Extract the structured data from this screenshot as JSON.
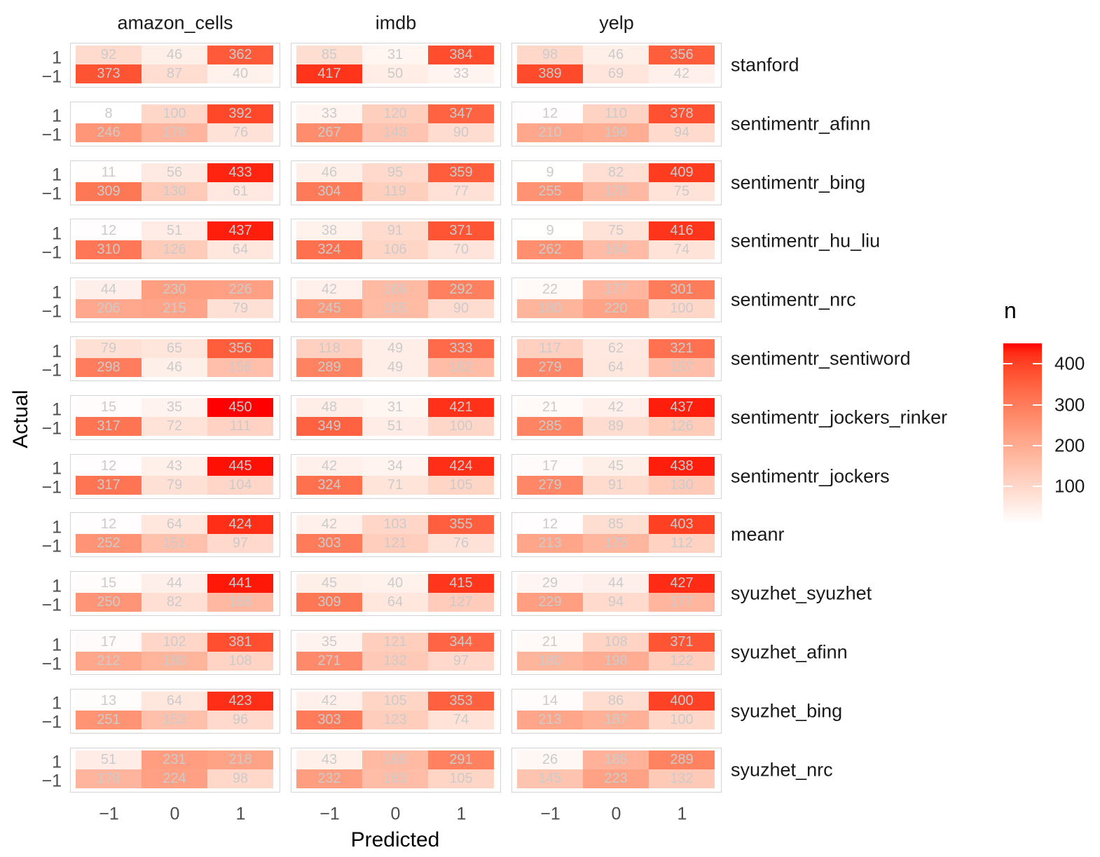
{
  "chart_data": {
    "type": "heatmap",
    "description": "Faceted confusion-matrix heatmaps (Actual vs Predicted sentiment) for 13 sentiment methods across 3 datasets; tile fill encodes count n.",
    "xlabel": "Predicted",
    "ylabel": "Actual",
    "x_categories": [
      "−1",
      "0",
      "1"
    ],
    "y_categories": [
      "1",
      "−1"
    ],
    "facet_columns": [
      "amazon_cells",
      "imdb",
      "yelp"
    ],
    "facet_rows": [
      "stanford",
      "sentimentr_afinn",
      "sentimentr_bing",
      "sentimentr_hu_liu",
      "sentimentr_nrc",
      "sentimentr_sentiword",
      "sentimentr_jockers_rinker",
      "sentimentr_jockers",
      "meanr",
      "syuzhet_syuzhet",
      "syuzhet_afinn",
      "syuzhet_bing",
      "syuzhet_nrc"
    ],
    "legend": {
      "title": "n",
      "ticks": [
        400,
        300,
        200,
        100
      ],
      "min": 8,
      "max": 450,
      "low_color": "#FFFFFF",
      "high_color": "#FF0000"
    },
    "rows": [
      {
        "method": "stanford",
        "matrices": [
          [
            [
              92,
              46,
              362
            ],
            [
              373,
              87,
              40
            ]
          ],
          [
            [
              85,
              31,
              384
            ],
            [
              417,
              50,
              33
            ]
          ],
          [
            [
              98,
              46,
              356
            ],
            [
              389,
              69,
              42
            ]
          ]
        ]
      },
      {
        "method": "sentimentr_afinn",
        "matrices": [
          [
            [
              8,
              100,
              392
            ],
            [
              246,
              178,
              76
            ]
          ],
          [
            [
              33,
              120,
              347
            ],
            [
              267,
              143,
              90
            ]
          ],
          [
            [
              12,
              110,
              378
            ],
            [
              210,
              196,
              94
            ]
          ]
        ]
      },
      {
        "method": "sentimentr_bing",
        "matrices": [
          [
            [
              11,
              56,
              433
            ],
            [
              309,
              130,
              61
            ]
          ],
          [
            [
              46,
              95,
              359
            ],
            [
              304,
              119,
              77
            ]
          ],
          [
            [
              9,
              82,
              409
            ],
            [
              255,
              170,
              75
            ]
          ]
        ]
      },
      {
        "method": "sentimentr_hu_liu",
        "matrices": [
          [
            [
              12,
              51,
              437
            ],
            [
              310,
              126,
              64
            ]
          ],
          [
            [
              38,
              91,
              371
            ],
            [
              324,
              106,
              70
            ]
          ],
          [
            [
              9,
              75,
              416
            ],
            [
              262,
              164,
              74
            ]
          ]
        ]
      },
      {
        "method": "sentimentr_nrc",
        "matrices": [
          [
            [
              44,
              230,
              226
            ],
            [
              206,
              215,
              79
            ]
          ],
          [
            [
              42,
              166,
              292
            ],
            [
              245,
              165,
              90
            ]
          ],
          [
            [
              22,
              177,
              301
            ],
            [
              180,
              220,
              100
            ]
          ]
        ]
      },
      {
        "method": "sentimentr_sentiword",
        "matrices": [
          [
            [
              79,
              65,
              356
            ],
            [
              298,
              46,
              156
            ]
          ],
          [
            [
              118,
              49,
              333
            ],
            [
              289,
              49,
              162
            ]
          ],
          [
            [
              117,
              62,
              321
            ],
            [
              279,
              64,
              157
            ]
          ]
        ]
      },
      {
        "method": "sentimentr_jockers_rinker",
        "matrices": [
          [
            [
              15,
              35,
              450
            ],
            [
              317,
              72,
              111
            ]
          ],
          [
            [
              48,
              31,
              421
            ],
            [
              349,
              51,
              100
            ]
          ],
          [
            [
              21,
              42,
              437
            ],
            [
              285,
              89,
              126
            ]
          ]
        ]
      },
      {
        "method": "sentimentr_jockers",
        "matrices": [
          [
            [
              12,
              43,
              445
            ],
            [
              317,
              79,
              104
            ]
          ],
          [
            [
              42,
              34,
              424
            ],
            [
              324,
              71,
              105
            ]
          ],
          [
            [
              17,
              45,
              438
            ],
            [
              279,
              91,
              130
            ]
          ]
        ]
      },
      {
        "method": "meanr",
        "matrices": [
          [
            [
              12,
              64,
              424
            ],
            [
              252,
              151,
              97
            ]
          ],
          [
            [
              42,
              103,
              355
            ],
            [
              303,
              121,
              76
            ]
          ],
          [
            [
              12,
              85,
              403
            ],
            [
              213,
              175,
              112
            ]
          ]
        ]
      },
      {
        "method": "syuzhet_syuzhet",
        "matrices": [
          [
            [
              15,
              44,
              441
            ],
            [
              250,
              82,
              168
            ]
          ],
          [
            [
              45,
              40,
              415
            ],
            [
              309,
              64,
              127
            ]
          ],
          [
            [
              29,
              44,
              427
            ],
            [
              229,
              94,
              177
            ]
          ]
        ]
      },
      {
        "method": "syuzhet_afinn",
        "matrices": [
          [
            [
              17,
              102,
              381
            ],
            [
              212,
              180,
              108
            ]
          ],
          [
            [
              35,
              121,
              344
            ],
            [
              271,
              132,
              97
            ]
          ],
          [
            [
              21,
              108,
              371
            ],
            [
              180,
              198,
              122
            ]
          ]
        ]
      },
      {
        "method": "syuzhet_bing",
        "matrices": [
          [
            [
              13,
              64,
              423
            ],
            [
              251,
              153,
              96
            ]
          ],
          [
            [
              42,
              105,
              353
            ],
            [
              303,
              123,
              74
            ]
          ],
          [
            [
              14,
              86,
              400
            ],
            [
              213,
              187,
              100
            ]
          ]
        ]
      },
      {
        "method": "syuzhet_nrc",
        "matrices": [
          [
            [
              51,
              231,
              218
            ],
            [
              178,
              224,
              98
            ]
          ],
          [
            [
              43,
              166,
              291
            ],
            [
              232,
              163,
              105
            ]
          ],
          [
            [
              26,
              185,
              289
            ],
            [
              145,
              223,
              132
            ]
          ]
        ]
      }
    ]
  },
  "colors": {
    "value_text": "#cbcbcb",
    "axis_tick_text": "#4d4d4d",
    "title_text": "#000000",
    "strip_text": "#1a1a1a",
    "panel_border": "#d4d4d4",
    "background": "#ffffff"
  }
}
